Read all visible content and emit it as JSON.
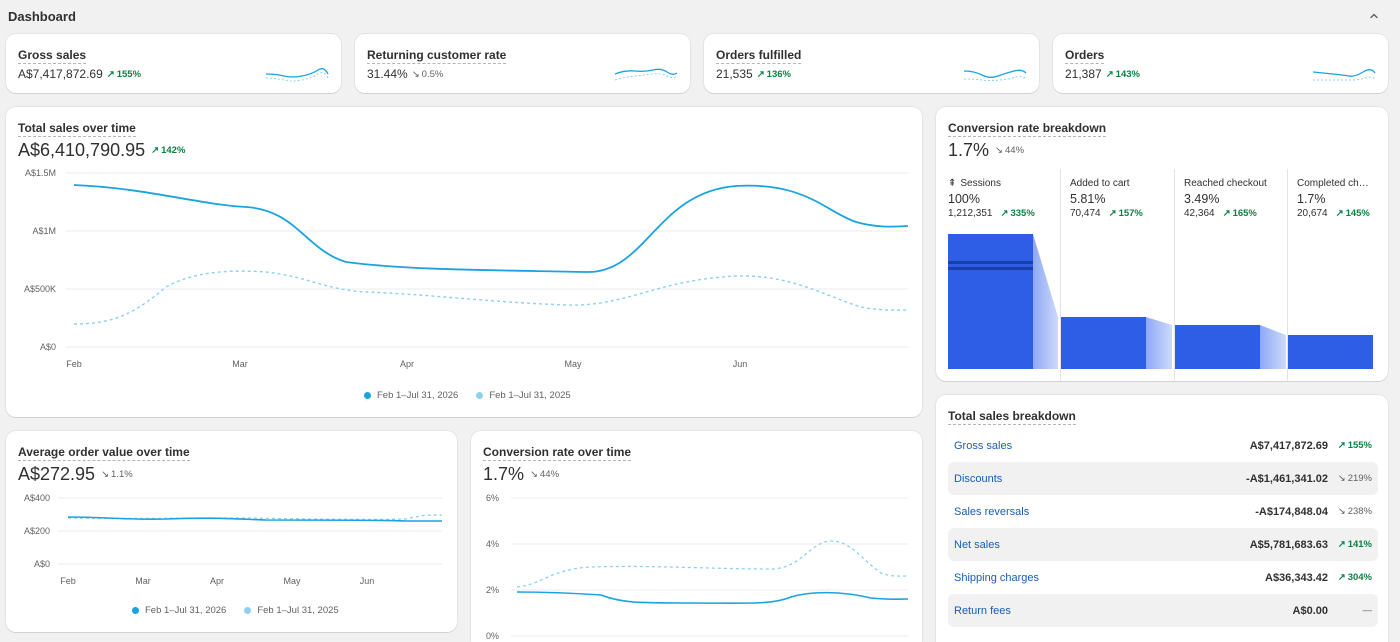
{
  "header": {
    "title": "Dashboard"
  },
  "kpis": [
    {
      "title": "Gross sales",
      "value": "A$7,417,872.69",
      "delta": "155%",
      "dir": "up"
    },
    {
      "title": "Returning customer rate",
      "value": "31.44%",
      "delta": "0.5%",
      "dir": "down"
    },
    {
      "title": "Orders fulfilled",
      "value": "21,535",
      "delta": "136%",
      "dir": "up"
    },
    {
      "title": "Orders",
      "value": "21,387",
      "delta": "143%",
      "dir": "up"
    }
  ],
  "total_sales": {
    "title": "Total sales over time",
    "value": "A$6,410,790.95",
    "delta": "142%",
    "y_ticks": [
      "A$1.5M",
      "A$1M",
      "A$500K",
      "A$0"
    ],
    "x_ticks": [
      "Feb",
      "Mar",
      "Apr",
      "May",
      "Jun"
    ],
    "legend": [
      "Feb 1–Jul 31, 2026",
      "Feb 1–Jul 31, 2025"
    ]
  },
  "aov": {
    "title": "Average order value over time",
    "value": "A$272.95",
    "delta": "1.1%",
    "y_ticks": [
      "A$400",
      "A$200",
      "A$0"
    ],
    "x_ticks": [
      "Feb",
      "Mar",
      "Apr",
      "May",
      "Jun"
    ],
    "legend": [
      "Feb 1–Jul 31, 2026",
      "Feb 1–Jul 31, 2025"
    ]
  },
  "conv_time": {
    "title": "Conversion rate over time",
    "value": "1.7%",
    "delta": "44%",
    "y_ticks": [
      "6%",
      "4%",
      "2%",
      "0%"
    ]
  },
  "conv_breakdown": {
    "title": "Conversion rate breakdown",
    "value": "1.7%",
    "delta": "44%",
    "steps": [
      {
        "label": "Sessions",
        "pct": "100%",
        "count": "1,212,351",
        "delta": "335%"
      },
      {
        "label": "Added to cart",
        "pct": "5.81%",
        "count": "70,474",
        "delta": "157%"
      },
      {
        "label": "Reached checkout",
        "pct": "3.49%",
        "count": "42,364",
        "delta": "165%"
      },
      {
        "label": "Completed ch…",
        "pct": "1.7%",
        "count": "20,674",
        "delta": "145%"
      }
    ]
  },
  "breakdown": {
    "title": "Total sales breakdown",
    "rows": [
      {
        "label": "Gross sales",
        "amount": "A$7,417,872.69",
        "delta": "155%",
        "dir": "up"
      },
      {
        "label": "Discounts",
        "amount": "-A$1,461,341.02",
        "delta": "219%",
        "dir": "down"
      },
      {
        "label": "Sales reversals",
        "amount": "-A$174,848.04",
        "delta": "238%",
        "dir": "down"
      },
      {
        "label": "Net sales",
        "amount": "A$5,781,683.63",
        "delta": "141%",
        "dir": "up"
      },
      {
        "label": "Shipping charges",
        "amount": "A$36,343.42",
        "delta": "304%",
        "dir": "up"
      },
      {
        "label": "Return fees",
        "amount": "A$0.00",
        "delta": "—",
        "dir": "flat"
      }
    ]
  },
  "colors": {
    "primary": "#1aa3e0",
    "secondary": "#8fd0ef",
    "funnel": "#2f5ee6",
    "positive": "#0c8043"
  }
}
